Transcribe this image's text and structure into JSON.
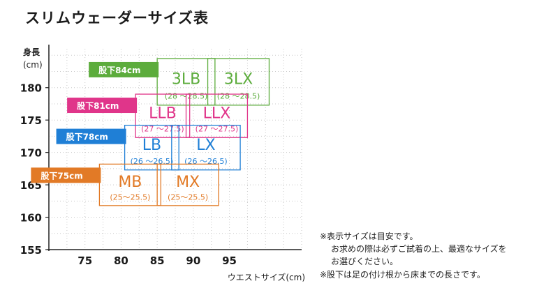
{
  "title": "スリムウェーダーサイズ表",
  "chart_data": {
    "type": "table",
    "ylabel": "身長",
    "yunit": "(cm)",
    "xlabel": "ウエストサイズ(cm)",
    "xticks": [
      75,
      80,
      85,
      90,
      95
    ],
    "yticks": [
      155,
      160,
      165,
      170,
      175,
      180
    ],
    "xlim": [
      70,
      105
    ],
    "ylim": [
      155,
      186
    ],
    "grid": true,
    "groups": [
      {
        "inseam": "股下84cm",
        "color": "#5cac3c",
        "sizes": [
          {
            "name": "3LB",
            "range": "(28 〜28.5)",
            "waist": [
              85,
              93
            ],
            "height": [
              177.3,
              184.5
            ]
          },
          {
            "name": "3LX",
            "range": "(28 〜28.5)",
            "waist": [
              92,
              100.5
            ],
            "height": [
              177.3,
              184.5
            ]
          }
        ]
      },
      {
        "inseam": "股下81cm",
        "color": "#e0358a",
        "sizes": [
          {
            "name": "LLB",
            "range": "(27 〜27.5)",
            "waist": [
              82,
              89.5
            ],
            "height": [
              172.3,
              179
            ]
          },
          {
            "name": "LLX",
            "range": "(27 〜27.5)",
            "waist": [
              89,
              97.5
            ],
            "height": [
              172.3,
              179
            ]
          }
        ]
      },
      {
        "inseam": "股下78cm",
        "color": "#1f7fd6",
        "sizes": [
          {
            "name": "LB",
            "range": "(26 〜26.5)",
            "waist": [
              80.5,
              88
            ],
            "height": [
              167.3,
              174.2
            ]
          },
          {
            "name": "LX",
            "range": "(26 〜26.5)",
            "waist": [
              87,
              96.5
            ],
            "height": [
              167.3,
              174.2
            ]
          }
        ]
      },
      {
        "inseam": "股下75cm",
        "color": "#e27a26",
        "sizes": [
          {
            "name": "MB",
            "range": "(25〜25.5)",
            "waist": [
              77,
              85.5
            ],
            "height": [
              161.8,
              168.2
            ]
          },
          {
            "name": "MX",
            "range": "(25〜25.5)",
            "waist": [
              85,
              93.5
            ],
            "height": [
              161.8,
              168.2
            ]
          }
        ]
      }
    ]
  },
  "notes": {
    "line1": "※表示サイズは目安です。",
    "line2": "お求めの際は必ずご試着の上、最適なサイズを",
    "line3": "お選びください。",
    "line4": "※股下は足の付け根から床までの長さです。"
  }
}
